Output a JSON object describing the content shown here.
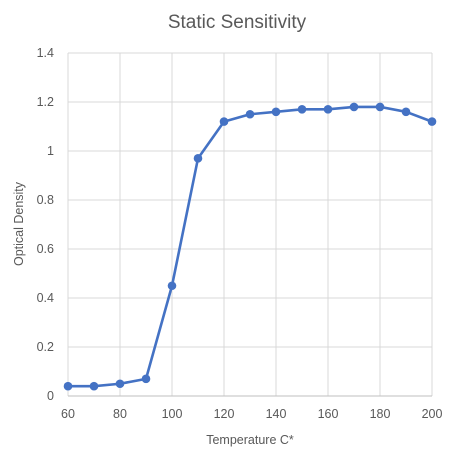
{
  "chart_data": {
    "type": "line",
    "title": "Static Sensitivity",
    "xlabel": "Temperature C*",
    "ylabel": "Optical Density",
    "xlim": [
      60,
      200
    ],
    "ylim": [
      0,
      1.4
    ],
    "x_ticks": [
      60,
      80,
      100,
      120,
      140,
      160,
      180,
      200
    ],
    "y_ticks": [
      0,
      0.2,
      0.4,
      0.6,
      0.8,
      1,
      1.2,
      1.4
    ],
    "x_tick_labels": [
      "60",
      "80",
      "100",
      "120",
      "140",
      "160",
      "180",
      "200"
    ],
    "y_tick_labels": [
      "0",
      "0.2",
      "0.4",
      "0.6",
      "0.8",
      "1",
      "1.2",
      "1.4"
    ],
    "grid": true,
    "legend": "none",
    "series": [
      {
        "color": "#4472c4",
        "x": [
          60,
          70,
          80,
          90,
          100,
          110,
          120,
          130,
          140,
          150,
          160,
          170,
          180,
          190,
          200
        ],
        "y": [
          0.04,
          0.04,
          0.05,
          0.07,
          0.45,
          0.97,
          1.12,
          1.15,
          1.16,
          1.17,
          1.17,
          1.18,
          1.18,
          1.16,
          1.12
        ]
      }
    ]
  }
}
